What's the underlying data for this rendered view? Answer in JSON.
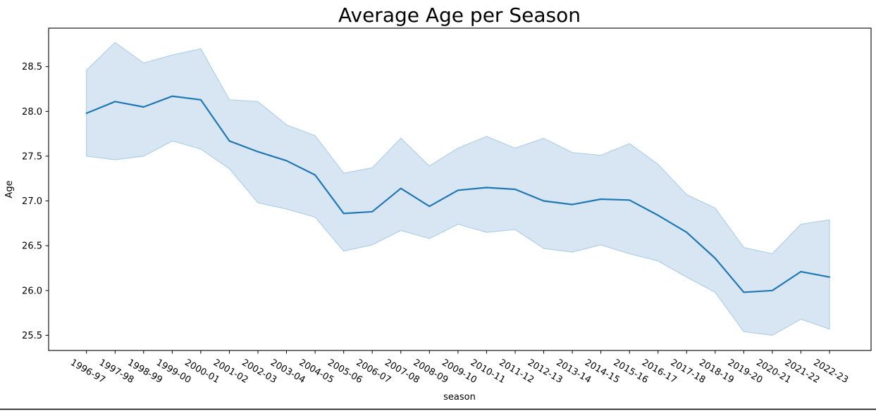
{
  "chart_data": {
    "type": "line",
    "title": "Average Age per Season",
    "xlabel": "season",
    "ylabel": "Age",
    "x": [
      "1996-97",
      "1997-98",
      "1998-99",
      "1999-00",
      "2000-01",
      "2001-02",
      "2002-03",
      "2003-04",
      "2004-05",
      "2005-06",
      "2006-07",
      "2007-08",
      "2008-09",
      "2009-10",
      "2010-11",
      "2011-12",
      "2012-13",
      "2013-14",
      "2014-15",
      "2015-16",
      "2016-17",
      "2017-18",
      "2018-19",
      "2019-20",
      "2020-21",
      "2021-22",
      "2022-23"
    ],
    "series": [
      {
        "name": "average_age",
        "values": [
          27.98,
          28.11,
          28.05,
          28.17,
          28.13,
          27.67,
          27.55,
          27.45,
          27.29,
          26.86,
          26.88,
          27.14,
          26.94,
          27.12,
          27.15,
          27.13,
          27.0,
          26.96,
          27.02,
          27.01,
          26.84,
          26.65,
          26.36,
          25.98,
          26.0,
          26.21,
          26.15
        ]
      },
      {
        "name": "ci_upper",
        "values": [
          28.46,
          28.77,
          28.54,
          28.63,
          28.7,
          28.13,
          28.11,
          27.85,
          27.73,
          27.31,
          27.37,
          27.7,
          27.39,
          27.59,
          27.72,
          27.59,
          27.7,
          27.54,
          27.51,
          27.64,
          27.41,
          27.07,
          26.92,
          26.48,
          26.41,
          26.74,
          26.79
        ]
      },
      {
        "name": "ci_lower",
        "values": [
          27.5,
          27.46,
          27.5,
          27.67,
          27.58,
          27.36,
          26.98,
          26.91,
          26.82,
          26.44,
          26.51,
          26.67,
          26.58,
          26.74,
          26.65,
          26.68,
          26.47,
          26.43,
          26.51,
          26.41,
          26.33,
          26.15,
          25.98,
          25.54,
          25.5,
          25.68,
          25.57
        ]
      }
    ],
    "yticks": [
      25.5,
      26.0,
      26.5,
      27.0,
      27.5,
      28.0,
      28.5
    ],
    "ylim": [
      25.33,
      28.93
    ],
    "x_tick_rotation_deg": 30,
    "grid": false,
    "legend": "none",
    "colors": {
      "line": "#1f77b4",
      "band_fill": "#d7e6f2",
      "band_edge": "#b0d0e6",
      "axis": "#000000"
    }
  }
}
